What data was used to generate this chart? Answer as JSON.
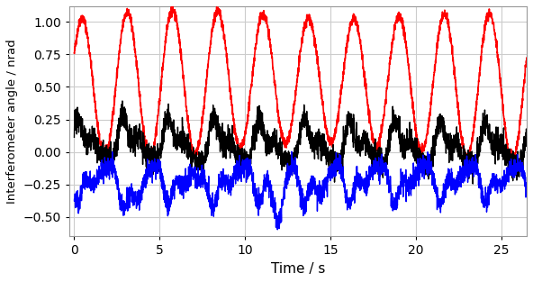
{
  "title": "",
  "xlabel": "Time / s",
  "ylabel": "Interferometer angle / nrad",
  "xlim": [
    -0.3,
    26.5
  ],
  "ylim": [
    -0.65,
    1.12
  ],
  "yticks": [
    -0.5,
    -0.25,
    0.0,
    0.25,
    0.5,
    0.75,
    1.0
  ],
  "xticks": [
    0,
    5,
    10,
    15,
    20,
    25
  ],
  "background_color": "#ffffff",
  "grid_color": "#cccccc",
  "red_color": "red",
  "black_color": "black",
  "blue_color": "blue",
  "linewidth_red": 1.2,
  "linewidth_black": 1.0,
  "linewidth_blue": 1.0,
  "seed": 42,
  "duration": 26.5,
  "num_points": 3000
}
